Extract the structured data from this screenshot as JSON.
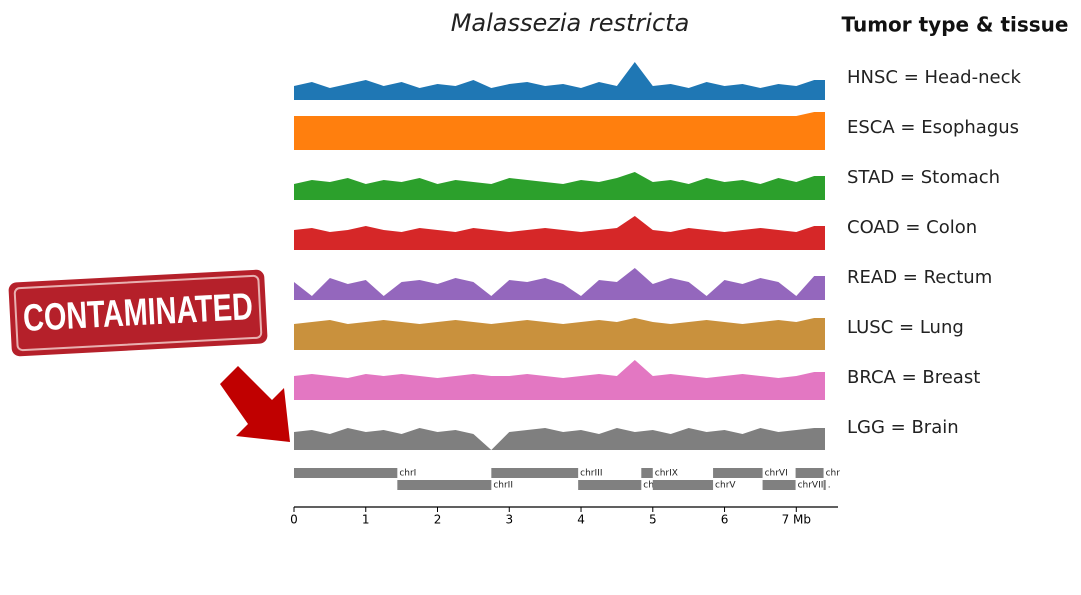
{
  "chart_data": {
    "type": "area",
    "title": "Malassezia restricta",
    "legend_title": "Tumor type & tissue",
    "stamp": "CONTAMINATED",
    "xlim": [
      0,
      7.4
    ],
    "xticks": [
      0,
      1,
      2,
      3,
      4,
      5,
      6,
      {
        "value": 7,
        "label": "7 Mb"
      }
    ],
    "x": [
      0,
      0.25,
      0.5,
      0.75,
      1,
      1.25,
      1.5,
      1.75,
      2,
      2.25,
      2.5,
      2.75,
      3,
      3.25,
      3.5,
      3.75,
      4,
      4.25,
      4.5,
      4.75,
      5,
      5.25,
      5.5,
      5.75,
      6,
      6.25,
      6.5,
      6.75,
      7,
      7.25
    ],
    "series": [
      {
        "name": "HNSC = Head-neck",
        "color": "#1f77b4",
        "values": [
          0.35,
          0.45,
          0.3,
          0.4,
          0.5,
          0.35,
          0.45,
          0.3,
          0.4,
          0.35,
          0.5,
          0.3,
          0.4,
          0.45,
          0.35,
          0.4,
          0.3,
          0.45,
          0.35,
          0.95,
          0.35,
          0.4,
          0.3,
          0.45,
          0.35,
          0.4,
          0.3,
          0.4,
          0.35,
          0.5
        ]
      },
      {
        "name": "ESCA = Esophagus",
        "color": "#ff7f0e",
        "values": [
          0.85,
          0.85,
          0.85,
          0.85,
          0.85,
          0.85,
          0.85,
          0.85,
          0.85,
          0.85,
          0.85,
          0.85,
          0.85,
          0.85,
          0.85,
          0.85,
          0.85,
          0.85,
          0.85,
          0.85,
          0.85,
          0.85,
          0.85,
          0.85,
          0.85,
          0.85,
          0.85,
          0.85,
          0.85,
          0.95
        ]
      },
      {
        "name": "STAD = Stomach",
        "color": "#2ca02c",
        "values": [
          0.4,
          0.5,
          0.45,
          0.55,
          0.4,
          0.5,
          0.45,
          0.55,
          0.4,
          0.5,
          0.45,
          0.4,
          0.55,
          0.5,
          0.45,
          0.4,
          0.5,
          0.45,
          0.55,
          0.7,
          0.45,
          0.5,
          0.4,
          0.55,
          0.45,
          0.5,
          0.4,
          0.55,
          0.45,
          0.6
        ]
      },
      {
        "name": "COAD = Colon",
        "color": "#d62728",
        "values": [
          0.5,
          0.55,
          0.45,
          0.5,
          0.6,
          0.5,
          0.45,
          0.55,
          0.5,
          0.45,
          0.55,
          0.5,
          0.45,
          0.5,
          0.55,
          0.5,
          0.45,
          0.5,
          0.55,
          0.85,
          0.5,
          0.45,
          0.55,
          0.5,
          0.45,
          0.5,
          0.55,
          0.5,
          0.45,
          0.6
        ]
      },
      {
        "name": "READ = Rectum",
        "color": "#9467bd",
        "values": [
          0.45,
          0.1,
          0.55,
          0.4,
          0.5,
          0.1,
          0.45,
          0.5,
          0.4,
          0.55,
          0.45,
          0.1,
          0.5,
          0.45,
          0.55,
          0.4,
          0.1,
          0.5,
          0.45,
          0.8,
          0.4,
          0.55,
          0.45,
          0.1,
          0.5,
          0.4,
          0.55,
          0.45,
          0.1,
          0.6
        ]
      },
      {
        "name": "LUSC = Lung",
        "color": "#c9913d",
        "values": [
          0.65,
          0.7,
          0.75,
          0.65,
          0.7,
          0.75,
          0.7,
          0.65,
          0.7,
          0.75,
          0.7,
          0.65,
          0.7,
          0.75,
          0.7,
          0.65,
          0.7,
          0.75,
          0.7,
          0.8,
          0.7,
          0.65,
          0.7,
          0.75,
          0.7,
          0.65,
          0.7,
          0.75,
          0.7,
          0.8
        ]
      },
      {
        "name": "BRCA = Breast",
        "color": "#e377c2",
        "values": [
          0.6,
          0.65,
          0.6,
          0.55,
          0.65,
          0.6,
          0.65,
          0.6,
          0.55,
          0.6,
          0.65,
          0.6,
          0.6,
          0.65,
          0.6,
          0.55,
          0.6,
          0.65,
          0.6,
          1.0,
          0.6,
          0.65,
          0.6,
          0.55,
          0.6,
          0.65,
          0.6,
          0.55,
          0.6,
          0.7
        ]
      },
      {
        "name": "LGG = Brain",
        "color": "#7f7f7f",
        "values": [
          0.45,
          0.5,
          0.4,
          0.55,
          0.45,
          0.5,
          0.4,
          0.55,
          0.45,
          0.5,
          0.4,
          0.0,
          0.45,
          0.5,
          0.55,
          0.45,
          0.5,
          0.4,
          0.55,
          0.45,
          0.5,
          0.4,
          0.55,
          0.45,
          0.5,
          0.4,
          0.55,
          0.45,
          0.5,
          0.55
        ]
      }
    ],
    "chromosomes": [
      {
        "label": "chrI",
        "start": 0,
        "end": 1.44,
        "row": 0
      },
      {
        "label": "chrII",
        "start": 1.44,
        "end": 2.75,
        "row": 1
      },
      {
        "label": "chrIII",
        "start": 2.75,
        "end": 3.96,
        "row": 0
      },
      {
        "label": "chrIV",
        "start": 3.96,
        "end": 4.84,
        "row": 1
      },
      {
        "label": "chrIX",
        "start": 4.84,
        "end": 5.0,
        "row": 0
      },
      {
        "label": "chrV",
        "start": 5.0,
        "end": 5.84,
        "row": 1
      },
      {
        "label": "chrVI",
        "start": 5.84,
        "end": 6.53,
        "row": 0
      },
      {
        "label": "chrVII",
        "start": 6.53,
        "end": 6.99,
        "row": 1
      },
      {
        "label": "chr",
        "start": 6.99,
        "end": 7.38,
        "row": 0
      },
      {
        "label": ".",
        "start": 7.38,
        "end": 7.41,
        "row": 1
      }
    ]
  }
}
